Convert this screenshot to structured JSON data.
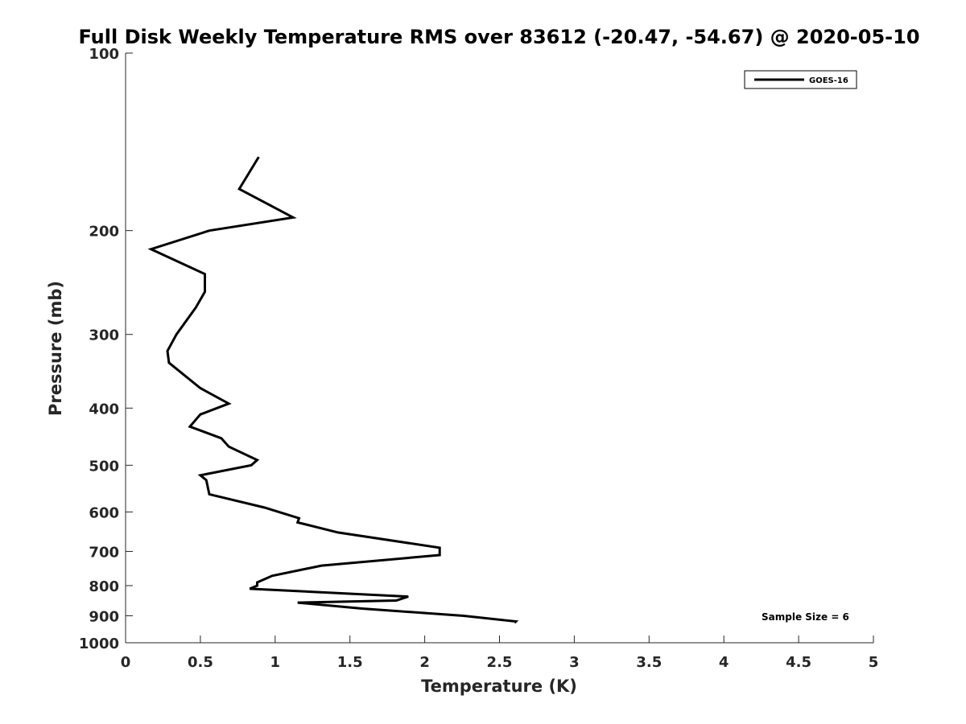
{
  "chart_data": {
    "type": "line",
    "title": "Full Disk Weekly Temperature RMS over 83612 (-20.47, -54.67) @ 2020-05-10",
    "xlabel": "Temperature (K)",
    "ylabel": "Pressure (mb)",
    "xlim": [
      0,
      5
    ],
    "ylim": [
      100,
      1000
    ],
    "y_scale": "log",
    "y_reversed": true,
    "x_ticks": [
      "0",
      "0.5",
      "1",
      "1.5",
      "2",
      "2.5",
      "3",
      "3.5",
      "4",
      "4.5",
      "5"
    ],
    "y_ticks": [
      "100",
      "200",
      "300",
      "400",
      "500",
      "600",
      "700",
      "800",
      "900",
      "1000"
    ],
    "grid": false,
    "legend_position": "top-right",
    "annotation": "Sample Size = 6",
    "series": [
      {
        "name": "GOES-16",
        "color": "#000000",
        "x": [
          0.89,
          0.76,
          1.12,
          0.56,
          0.17,
          0.53,
          0.53,
          0.47,
          0.34,
          0.28,
          0.29,
          0.5,
          0.69,
          0.5,
          0.43,
          0.64,
          0.69,
          0.88,
          0.84,
          0.5,
          0.54,
          0.56,
          0.93,
          1.16,
          1.15,
          1.42,
          2.1,
          2.1,
          1.31,
          0.98,
          0.88,
          0.88,
          0.83,
          1.89,
          1.81,
          1.15,
          1.58,
          2.26,
          2.61,
          2.6
        ],
        "y": [
          150,
          170,
          190,
          200,
          215,
          237,
          254,
          270,
          300,
          320,
          335,
          370,
          393,
          410,
          430,
          450,
          465,
          490,
          500,
          520,
          530,
          560,
          590,
          615,
          625,
          650,
          690,
          710,
          740,
          770,
          790,
          800,
          810,
          835,
          848,
          855,
          875,
          900,
          920,
          925
        ]
      }
    ]
  }
}
